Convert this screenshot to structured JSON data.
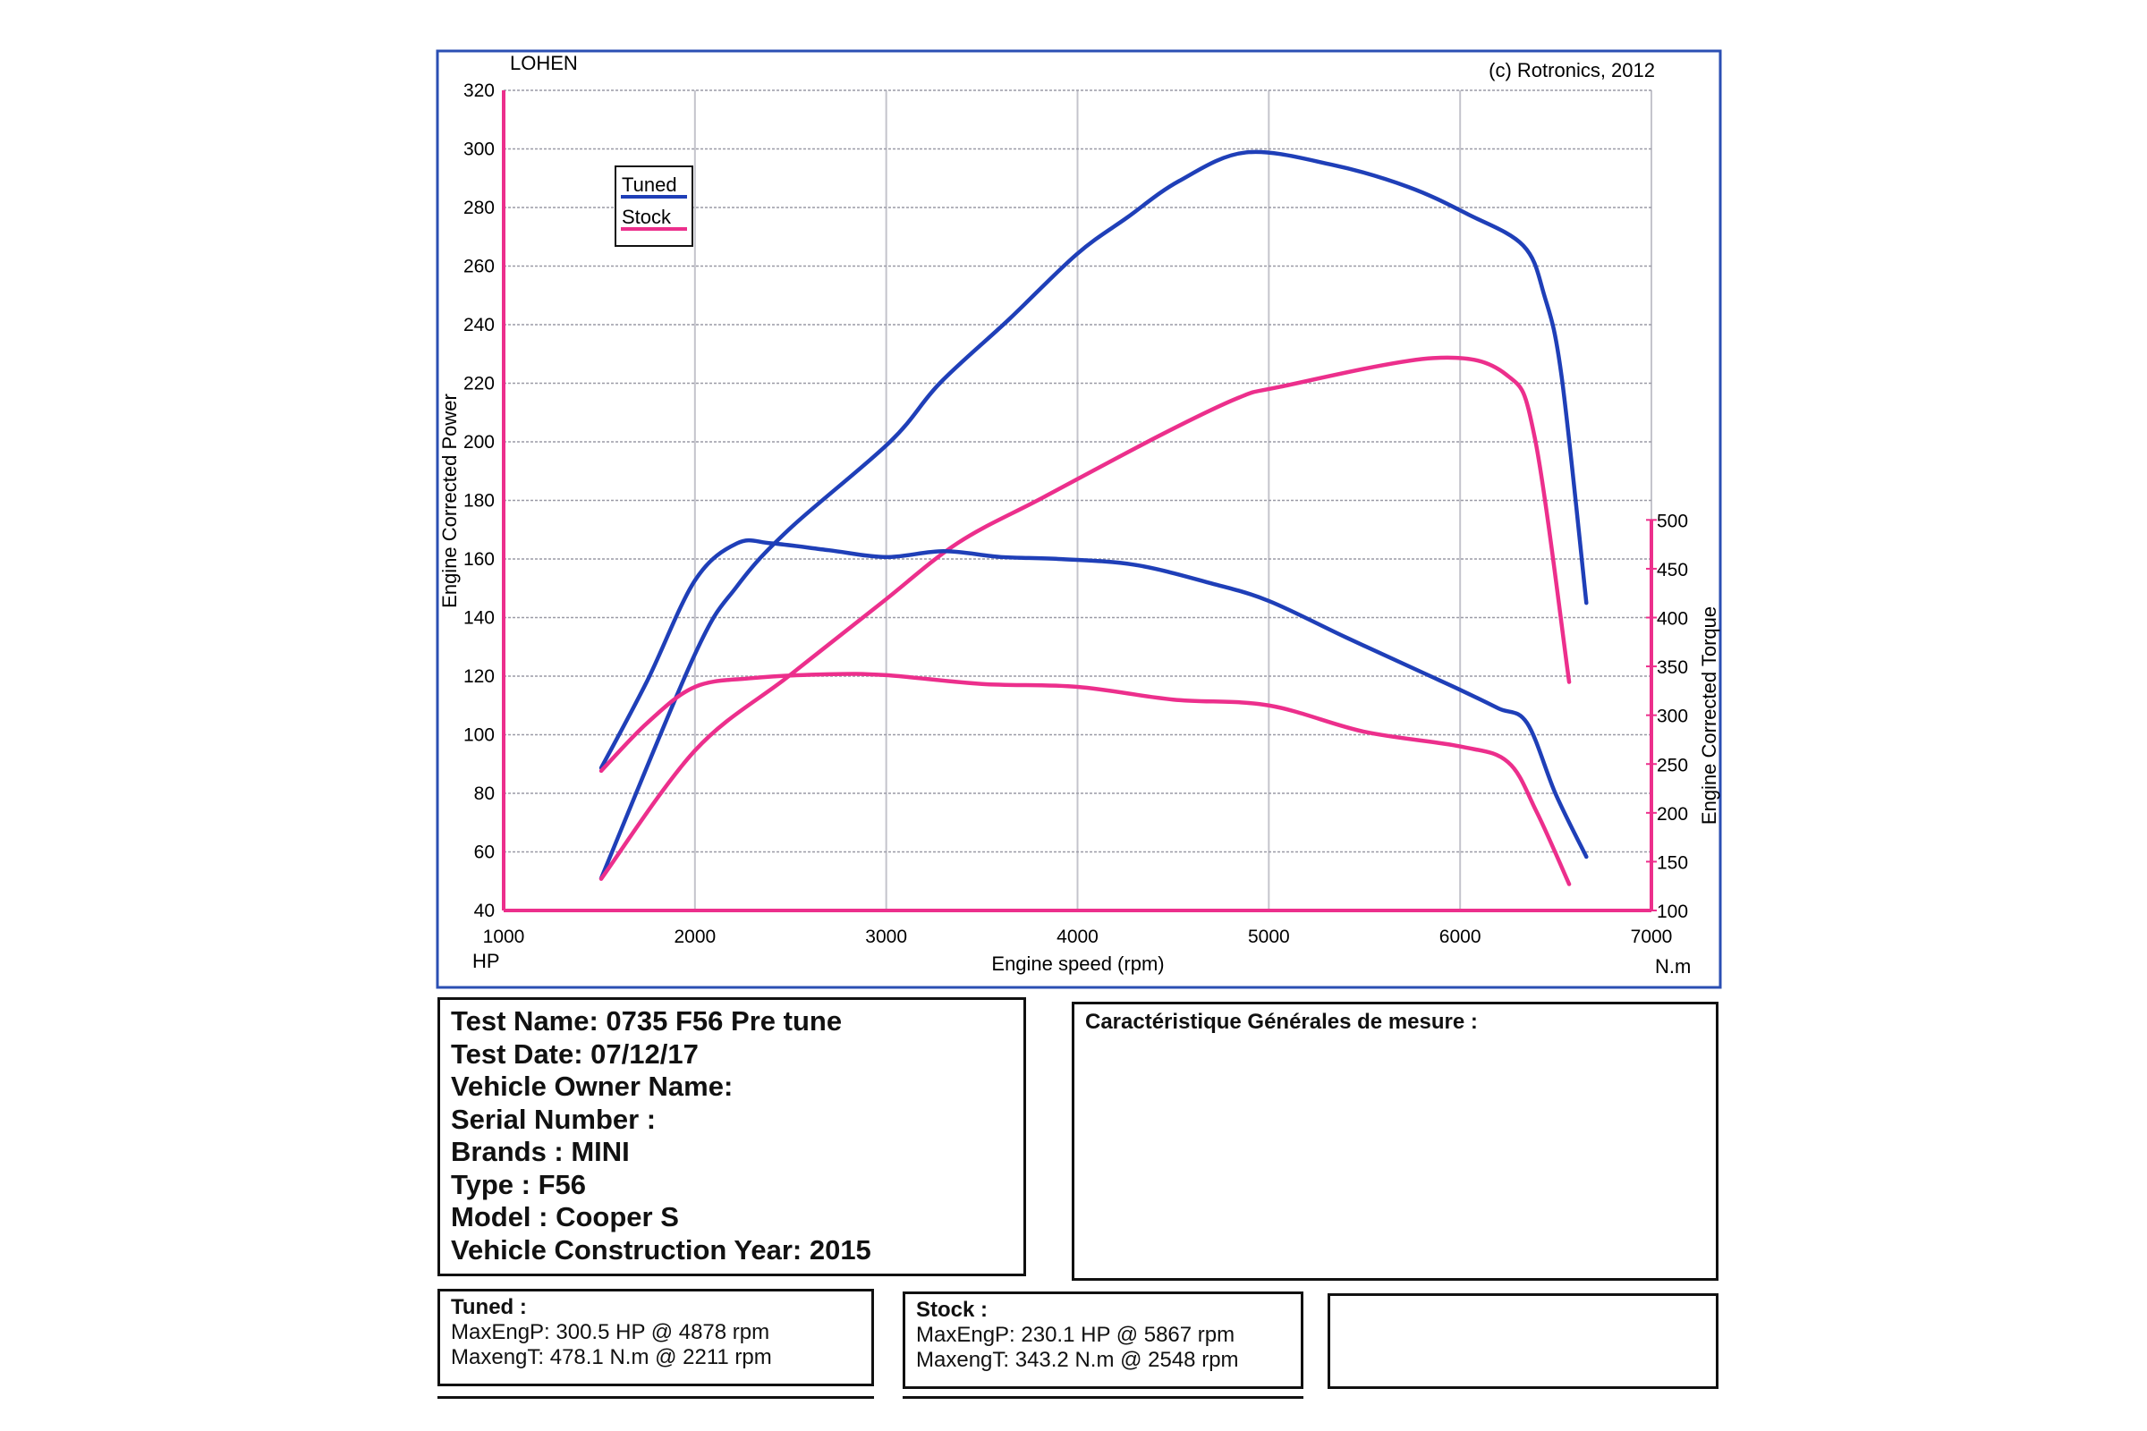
{
  "header": {
    "left_label": "LOHEN",
    "copyright": "(c) Rotronics, 2012"
  },
  "chart_data": {
    "type": "line",
    "xlabel": "Engine speed (rpm)",
    "x_unit_left": "HP",
    "x_unit_right": "N.m",
    "ylabel_left": "Engine Corrected Power",
    "ylabel_right": "Engine Corrected Torque",
    "xlim": [
      1000,
      7000
    ],
    "xticks": [
      1000,
      2000,
      3000,
      4000,
      5000,
      6000,
      7000
    ],
    "ylim_left": [
      40,
      320
    ],
    "yticks_left": [
      40,
      60,
      80,
      100,
      120,
      140,
      160,
      180,
      200,
      220,
      240,
      260,
      280,
      300,
      320
    ],
    "ylim_right": [
      100,
      940
    ],
    "yticks_right": [
      100,
      150,
      200,
      250,
      300,
      350,
      400,
      450,
      500
    ],
    "grid": true,
    "legend": {
      "position": "top-left",
      "entries": [
        "Tuned",
        "Stock"
      ]
    },
    "colors": {
      "Tuned": "#1f3fb8",
      "Stock": "#ec2f8c",
      "axis": "#ec2f8c",
      "frame": "#2b4fb3"
    },
    "series": [
      {
        "name": "Tuned",
        "quantity": "power",
        "axis": "left",
        "x": [
          1510,
          2000,
          2220,
          2490,
          3020,
          3280,
          3640,
          3995,
          4260,
          4530,
          4880,
          5330,
          5730,
          6040,
          6330,
          6440,
          6530,
          6660
        ],
        "y": [
          51,
          127.5,
          150.7,
          170,
          200,
          220,
          241.7,
          264,
          276.6,
          289,
          298.8,
          294.6,
          287,
          277.7,
          267,
          250,
          222.6,
          145
        ]
      },
      {
        "name": "Stock",
        "quantity": "power",
        "axis": "left",
        "x": [
          1510,
          2000,
          2490,
          2975,
          3375,
          3820,
          4440,
          4840,
          5060,
          5860,
          6240,
          6390,
          6570
        ],
        "y": [
          50.8,
          94.6,
          120,
          145,
          165.5,
          181,
          202.5,
          215,
          218.8,
          228.6,
          223,
          201.5,
          118
        ]
      },
      {
        "name": "Tuned",
        "quantity": "torque",
        "axis": "right",
        "x": [
          1510,
          1750,
          2000,
          2220,
          2400,
          2700,
          3000,
          3300,
          3600,
          3900,
          4300,
          4700,
          5000,
          5400,
          5800,
          6000,
          6200,
          6350,
          6500,
          6660
        ],
        "y": [
          246,
          335,
          438,
          476,
          476,
          469,
          462,
          468,
          462,
          460,
          454,
          435,
          417,
          380,
          344,
          326,
          307,
          292,
          219,
          155
        ]
      },
      {
        "name": "Stock",
        "quantity": "torque",
        "axis": "right",
        "x": [
          1510,
          1750,
          2000,
          2300,
          2700,
          3000,
          3500,
          4000,
          4500,
          5000,
          5500,
          6000,
          6250,
          6400,
          6570
        ],
        "y": [
          243,
          292,
          329,
          338,
          342,
          341,
          332,
          329,
          316,
          310,
          283,
          268,
          252,
          201,
          127
        ]
      }
    ]
  },
  "info": {
    "lines": [
      "Test Name: 0735  F56 Pre tune",
      "Test Date: 07/12/17",
      "Vehicle Owner Name:",
      "Serial Number  :",
      "Brands  : MINI",
      "Type  : F56",
      "Model  : Cooper S",
      "Vehicle Construction Year: 2015"
    ],
    "characteristics_title": "Caractéristique Générales de mesure :"
  },
  "results": {
    "tuned": {
      "title": "Tuned  :",
      "power": "MaxEngP: 300.5 HP @ 4878 rpm",
      "torque": "MaxengT: 478.1 N.m @ 2211 rpm"
    },
    "stock": {
      "title": "Stock  :",
      "power": "MaxEngP: 230.1 HP @ 5867 rpm",
      "torque": "MaxengT: 343.2 N.m @ 2548 rpm"
    }
  }
}
